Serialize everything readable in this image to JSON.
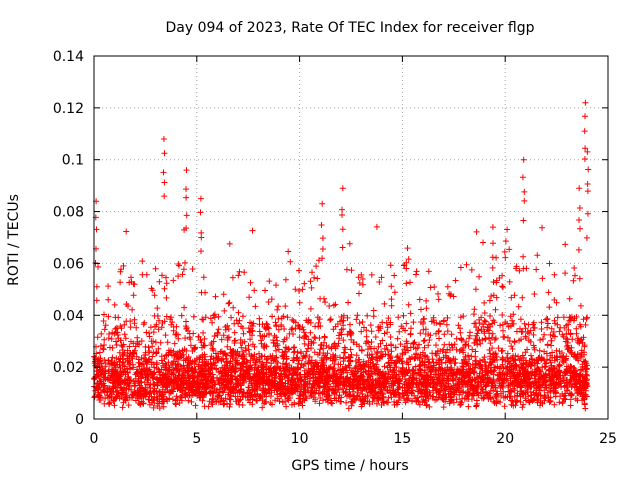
{
  "chart_data": {
    "type": "scatter",
    "title": "Day 094 of 2023, Rate Of TEC Index for receiver flgp",
    "xlabel": "GPS time / hours",
    "ylabel": "ROTI / TECUs",
    "xlim": [
      0,
      25
    ],
    "ylim": [
      0,
      0.14
    ],
    "x_ticks": [
      0,
      5,
      10,
      15,
      20,
      25
    ],
    "y_ticks": [
      0,
      0.02,
      0.04,
      0.06,
      0.08,
      0.1,
      0.12,
      0.14
    ],
    "x_tick_labels": [
      "0",
      "5",
      "10",
      "15",
      "20",
      "25"
    ],
    "y_tick_labels": [
      "0",
      "0.02",
      "0.04",
      "0.06",
      "0.08",
      "0.1",
      "0.12",
      "0.14"
    ],
    "grid": true,
    "marker": "plus",
    "color": "#ff0000",
    "series": [
      {
        "name": "ROTI",
        "x_range_hours": [
          0,
          24
        ],
        "note": "Dense scatter cloud; most points between 0.003 and 0.03 TECU/s with frequent spikes to ~0.05 and occasional outliers above 0.08",
        "notable_points": [
          {
            "x": 3.4,
            "y": 0.108
          },
          {
            "x": 4.5,
            "y": 0.096
          },
          {
            "x": 20.9,
            "y": 0.1
          },
          {
            "x": 23.9,
            "y": 0.122
          },
          {
            "x": 0.1,
            "y": 0.084
          },
          {
            "x": 12.1,
            "y": 0.089
          },
          {
            "x": 11.1,
            "y": 0.083
          },
          {
            "x": 5.2,
            "y": 0.085
          },
          {
            "x": 24.0,
            "y": 0.103
          },
          {
            "x": 19.4,
            "y": 0.074
          },
          {
            "x": 23.6,
            "y": 0.089
          }
        ]
      }
    ]
  },
  "labels": {
    "title": "Day 094 of 2023, Rate Of TEC Index for receiver flgp",
    "xlabel": "GPS time / hours",
    "ylabel": "ROTI / TECUs"
  }
}
